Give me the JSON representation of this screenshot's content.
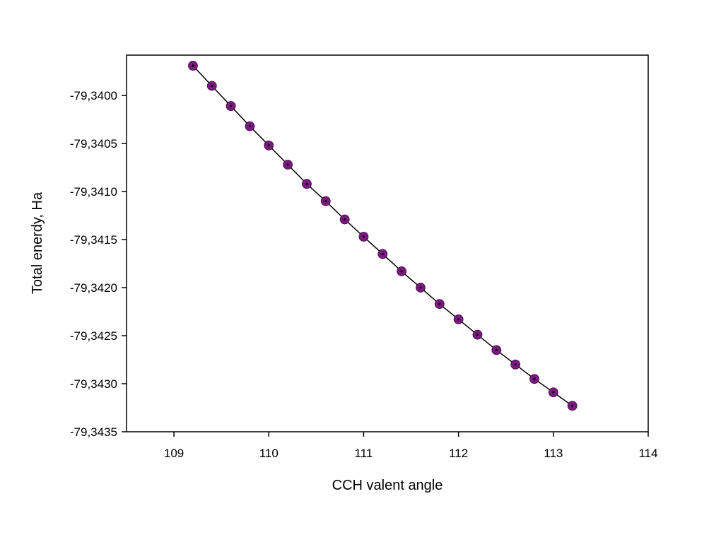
{
  "chart_data": {
    "type": "line",
    "title": "",
    "xlabel": "CCH valent angle",
    "ylabel": "Total enerdy, Ha",
    "xlim": [
      108.5,
      114
    ],
    "ylim": [
      -79.3435,
      -79.33958
    ],
    "xticks": [
      109,
      110,
      111,
      112,
      113,
      114
    ],
    "xtick_labels": [
      "109",
      "110",
      "111",
      "112",
      "113",
      "114"
    ],
    "yticks": [
      -79.34,
      -79.3405,
      -79.341,
      -79.3415,
      -79.342,
      -79.3425,
      -79.343,
      -79.3435
    ],
    "ytick_labels": [
      "-79,3400",
      "-79,3405",
      "-79,3410",
      "-79,3415",
      "-79,3420",
      "-79,3425",
      "-79,3430",
      "-79,3435"
    ],
    "grid": false,
    "legend": "none",
    "series": [
      {
        "x": [
          109.2,
          109.4,
          109.6,
          109.8,
          110.0,
          110.2,
          110.4,
          110.6,
          110.8,
          111.0,
          111.2,
          111.4,
          111.6,
          111.8,
          112.0,
          112.2,
          112.4,
          112.6,
          112.8,
          113.0,
          113.2
        ],
        "y": [
          -79.33969,
          -79.3399,
          -79.34011,
          -79.34032,
          -79.34052,
          -79.34072,
          -79.34092,
          -79.3411,
          -79.34129,
          -79.34147,
          -79.34165,
          -79.34183,
          -79.342,
          -79.34217,
          -79.34233,
          -79.34249,
          -79.34265,
          -79.3428,
          -79.34295,
          -79.34309,
          -79.34323
        ],
        "marker_color": "#7a1a80",
        "line_color": "#000000"
      }
    ]
  }
}
